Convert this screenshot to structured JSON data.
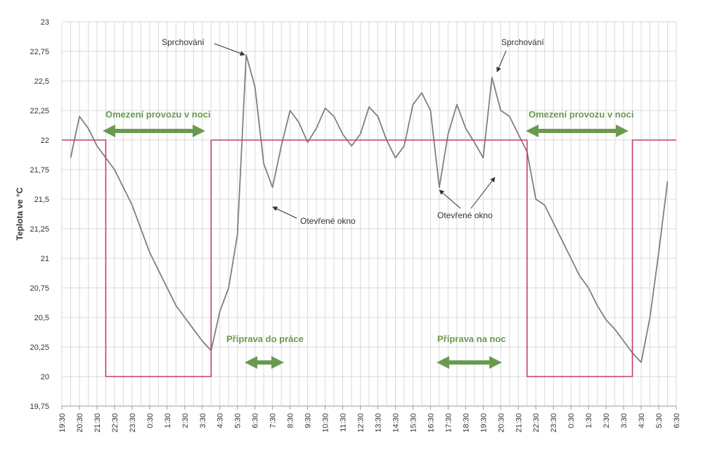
{
  "chart_data": {
    "type": "line",
    "y_label": "Teplota ve °C",
    "categories": [
      "19:30",
      null,
      "20:30",
      null,
      "21:30",
      null,
      "22:30",
      null,
      "23:30",
      null,
      "0:30",
      null,
      "1:30",
      null,
      "2:30",
      null,
      "3:30",
      null,
      "4:30",
      null,
      "5:30",
      null,
      "6:30",
      null,
      "7:30",
      null,
      "8:30",
      null,
      "9:30",
      null,
      "10:30",
      null,
      "11:30",
      null,
      "12:30",
      null,
      "13:30",
      null,
      "14:30",
      null,
      "15:30",
      null,
      "16:30",
      null,
      "17:30",
      null,
      "18:30",
      null,
      "19:30",
      null,
      "20:30",
      null,
      "21:30",
      null,
      "22:30",
      null,
      "23:30",
      null,
      "0:30",
      null,
      "1:30",
      null,
      "2:30",
      null,
      "3:30",
      null,
      "4:30",
      null,
      "5:30",
      null,
      "6:30"
    ],
    "series": [
      {
        "color": "#7f7f7f",
        "values": [
          null,
          21.85,
          22.2,
          22.1,
          21.95,
          21.85,
          21.75,
          21.6,
          21.45,
          21.25,
          21.05,
          20.9,
          20.75,
          20.6,
          20.5,
          20.4,
          20.3,
          20.22,
          20.55,
          20.75,
          21.2,
          22.72,
          22.45,
          21.8,
          21.6,
          21.95,
          22.25,
          22.15,
          21.98,
          22.1,
          22.27,
          22.2,
          22.05,
          21.95,
          22.05,
          22.28,
          22.2,
          22.0,
          21.85,
          21.95,
          22.3,
          22.4,
          22.25,
          21.6,
          22.05,
          22.3,
          22.1,
          21.98,
          21.85,
          22.53,
          22.25,
          22.2,
          22.05,
          21.9,
          21.5,
          21.45,
          21.3,
          21.15,
          21.0,
          20.85,
          20.75,
          20.6,
          20.48,
          20.4,
          20.3,
          20.2,
          20.12,
          20.5,
          21.05,
          21.65,
          null
        ]
      },
      {
        "color": "#c0406a",
        "step": true,
        "values": [
          22,
          22,
          22,
          22,
          22,
          20,
          20,
          20,
          20,
          20,
          20,
          20,
          20,
          20,
          20,
          20,
          20,
          22,
          22,
          22,
          22,
          22,
          22,
          22,
          22,
          22,
          22,
          22,
          22,
          22,
          22,
          22,
          22,
          22,
          22,
          22,
          22,
          22,
          22,
          22,
          22,
          22,
          22,
          22,
          22,
          22,
          22,
          22,
          22,
          22,
          22,
          22,
          22,
          20,
          20,
          20,
          20,
          20,
          20,
          20,
          20,
          20,
          20,
          20,
          20,
          22,
          22,
          22,
          22,
          22,
          22
        ]
      }
    ],
    "ylim": [
      19.75,
      23
    ],
    "yticks": [
      {
        "value": 19.75,
        "label": "19,75"
      },
      20,
      {
        "value": 20.25,
        "label": "20,25"
      },
      {
        "value": 20.5,
        "label": "20,5"
      },
      {
        "value": 20.75,
        "label": "20,75"
      },
      21,
      {
        "value": 21.25,
        "label": "21,25"
      },
      {
        "value": 21.5,
        "label": "21,5"
      },
      {
        "value": 21.75,
        "label": "21,75"
      },
      22,
      {
        "value": 22.25,
        "label": "22,25"
      },
      {
        "value": 22.5,
        "label": "22,5"
      },
      {
        "value": 22.75,
        "label": "22,75"
      },
      23
    ],
    "grid": true,
    "annotations": [
      "Sprchování",
      "Sprchování",
      "Omezení provozu v noci",
      "Omezení provozu v noci",
      "Otevřené okno",
      "Otevřené okno",
      "Příprava do práce",
      "Příprava na noc"
    ]
  }
}
